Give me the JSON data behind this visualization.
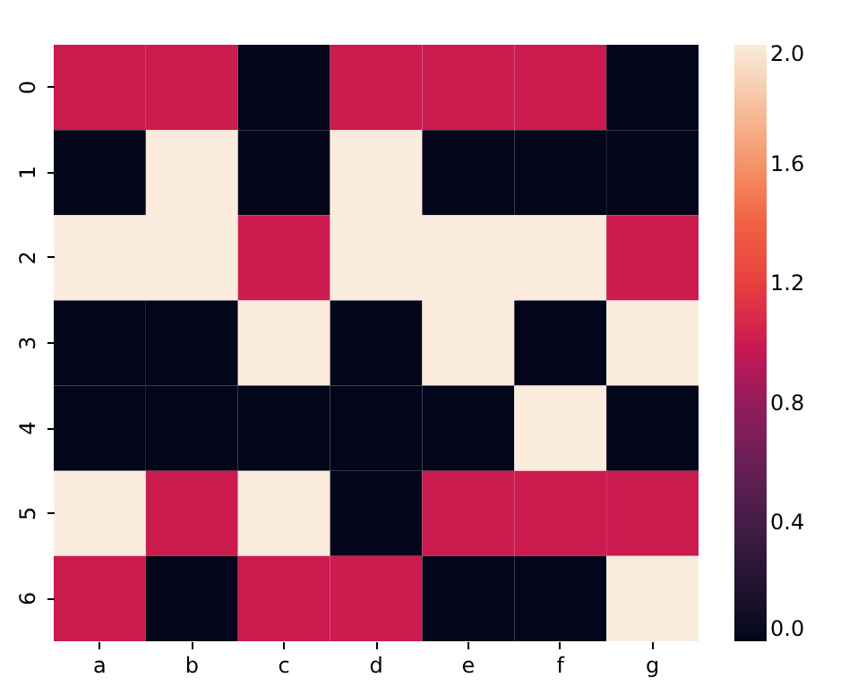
{
  "chart_data": {
    "type": "heatmap",
    "categories": [
      "a",
      "b",
      "c",
      "d",
      "e",
      "f",
      "g"
    ],
    "y_categories": [
      "0",
      "1",
      "2",
      "3",
      "4",
      "5",
      "6"
    ],
    "cells": [
      [
        1,
        1,
        0,
        1,
        1,
        1,
        0
      ],
      [
        0,
        2,
        0,
        2,
        0,
        0,
        0
      ],
      [
        2,
        2,
        1,
        2,
        2,
        2,
        1
      ],
      [
        0,
        0,
        2,
        0,
        2,
        0,
        2
      ],
      [
        0,
        0,
        0,
        0,
        0,
        2,
        0
      ],
      [
        2,
        1,
        2,
        0,
        1,
        1,
        1
      ],
      [
        1,
        0,
        1,
        1,
        0,
        0,
        2
      ]
    ],
    "clim": [
      0,
      2
    ],
    "cticks": [
      {
        "value": 0,
        "label": "0.0"
      },
      {
        "value": 0.4,
        "label": "0.4"
      },
      {
        "value": 0.8,
        "label": "0.8"
      },
      {
        "value": 1.2,
        "label": "1.2"
      },
      {
        "value": 1.6,
        "label": "1.6"
      },
      {
        "value": 2,
        "label": "2.0"
      }
    ]
  }
}
